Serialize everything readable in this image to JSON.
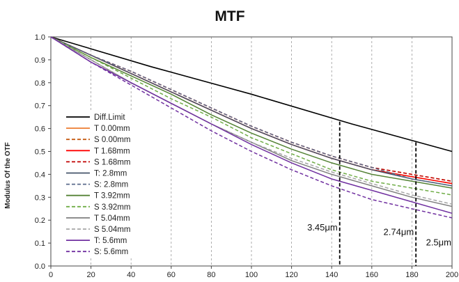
{
  "chart_data": {
    "type": "line",
    "title": "MTF",
    "xlabel": "",
    "ylabel": "Modulus Of the OTF",
    "xlim": [
      0,
      200
    ],
    "ylim": [
      0,
      1.0
    ],
    "xticks": [
      0,
      20,
      40,
      60,
      80,
      100,
      120,
      140,
      160,
      180,
      200
    ],
    "yticks": [
      "0.0",
      "0.1",
      "0.2",
      "0.3",
      "0.4",
      "0.5",
      "0.6",
      "0.7",
      "0.8",
      "0.9",
      "1.0"
    ],
    "grid": "vertical dashed",
    "legend_position": "left",
    "series": [
      {
        "name": "Diff.Limit",
        "color": "#000000",
        "dash": false,
        "x": [
          0,
          50,
          100,
          150,
          200
        ],
        "y": [
          1.0,
          0.87,
          0.75,
          0.62,
          0.5
        ]
      },
      {
        "name": "T 0.00mm",
        "color": "#ED7D31",
        "dash": false,
        "x": [
          0,
          20,
          40,
          60,
          80,
          100,
          120,
          140,
          160,
          180,
          200
        ],
        "y": [
          1.0,
          0.92,
          0.84,
          0.76,
          0.68,
          0.6,
          0.53,
          0.47,
          0.42,
          0.39,
          0.36
        ]
      },
      {
        "name": "S 0.00mm",
        "color": "#C55A11",
        "dash": true,
        "x": [
          0,
          20,
          40,
          60,
          80,
          100,
          120,
          140,
          160,
          180,
          200
        ],
        "y": [
          1.0,
          0.92,
          0.85,
          0.77,
          0.69,
          0.61,
          0.54,
          0.48,
          0.43,
          0.4,
          0.37
        ]
      },
      {
        "name": "T 1.68mm",
        "color": "#FF0000",
        "dash": false,
        "x": [
          0,
          20,
          40,
          60,
          80,
          100,
          120,
          140,
          160,
          180,
          200
        ],
        "y": [
          1.0,
          0.92,
          0.84,
          0.76,
          0.68,
          0.6,
          0.53,
          0.47,
          0.42,
          0.39,
          0.36
        ]
      },
      {
        "name": "S 1.68mm",
        "color": "#C00000",
        "dash": true,
        "x": [
          0,
          20,
          40,
          60,
          80,
          100,
          120,
          140,
          160,
          180,
          200
        ],
        "y": [
          1.0,
          0.92,
          0.85,
          0.77,
          0.69,
          0.61,
          0.54,
          0.48,
          0.43,
          0.4,
          0.37
        ]
      },
      {
        "name": "T: 2.8mm",
        "color": "#44546A",
        "dash": false,
        "x": [
          0,
          20,
          40,
          60,
          80,
          100,
          120,
          140,
          160,
          180,
          200
        ],
        "y": [
          1.0,
          0.92,
          0.84,
          0.76,
          0.68,
          0.6,
          0.53,
          0.47,
          0.42,
          0.38,
          0.35
        ]
      },
      {
        "name": "S: 2.8mm",
        "color": "#5B6B8C",
        "dash": true,
        "x": [
          0,
          20,
          40,
          60,
          80,
          100,
          120,
          140,
          160,
          180,
          200
        ],
        "y": [
          1.0,
          0.92,
          0.85,
          0.77,
          0.69,
          0.61,
          0.54,
          0.48,
          0.43,
          0.38,
          0.35
        ]
      },
      {
        "name": "T 3.92mm",
        "color": "#548235",
        "dash": false,
        "x": [
          0,
          20,
          40,
          60,
          80,
          100,
          120,
          140,
          160,
          180,
          200
        ],
        "y": [
          1.0,
          0.91,
          0.83,
          0.75,
          0.66,
          0.58,
          0.51,
          0.45,
          0.4,
          0.37,
          0.34
        ]
      },
      {
        "name": "S 3.92mm",
        "color": "#70AD47",
        "dash": true,
        "x": [
          0,
          20,
          40,
          60,
          80,
          100,
          120,
          140,
          160,
          180,
          200
        ],
        "y": [
          1.0,
          0.91,
          0.82,
          0.73,
          0.65,
          0.56,
          0.49,
          0.42,
          0.37,
          0.34,
          0.31
        ]
      },
      {
        "name": "T 5.04mm",
        "color": "#7F7F7F",
        "dash": false,
        "x": [
          0,
          20,
          40,
          60,
          80,
          100,
          120,
          140,
          160,
          180,
          200
        ],
        "y": [
          1.0,
          0.9,
          0.8,
          0.71,
          0.62,
          0.54,
          0.46,
          0.4,
          0.35,
          0.3,
          0.26
        ]
      },
      {
        "name": "S 5.04mm",
        "color": "#A6A6A6",
        "dash": true,
        "x": [
          0,
          20,
          40,
          60,
          80,
          100,
          120,
          140,
          160,
          180,
          200
        ],
        "y": [
          1.0,
          0.9,
          0.8,
          0.71,
          0.62,
          0.54,
          0.47,
          0.41,
          0.36,
          0.31,
          0.27
        ]
      },
      {
        "name": "T: 5.6mm",
        "color": "#7030A0",
        "dash": false,
        "x": [
          0,
          20,
          40,
          60,
          80,
          100,
          120,
          140,
          160,
          180,
          200
        ],
        "y": [
          1.0,
          0.89,
          0.8,
          0.71,
          0.62,
          0.53,
          0.45,
          0.38,
          0.33,
          0.28,
          0.23
        ]
      },
      {
        "name": "S: 5.6mm",
        "color": "#7030A0",
        "dash": true,
        "x": [
          0,
          20,
          40,
          60,
          80,
          100,
          120,
          140,
          160,
          180,
          200
        ],
        "y": [
          1.0,
          0.89,
          0.79,
          0.69,
          0.59,
          0.5,
          0.42,
          0.35,
          0.29,
          0.25,
          0.21
        ]
      }
    ],
    "annotations": [
      {
        "label": "3.45μm",
        "x": 144,
        "y_top": 0.63
      },
      {
        "label": "2.74μm",
        "x": 182,
        "y_top": 0.54
      },
      {
        "label": "2.5μm",
        "x": 200,
        "y_top": null
      }
    ]
  }
}
